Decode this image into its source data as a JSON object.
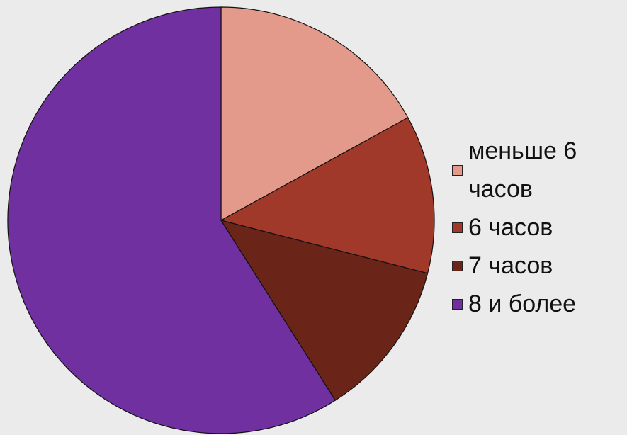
{
  "chart_data": {
    "type": "pie",
    "categories": [
      "меньше 6 часов",
      "6 часов",
      "7 часов",
      "8 и более"
    ],
    "values": [
      17,
      12,
      12,
      59
    ],
    "colors": [
      "#e39a8b",
      "#a1392b",
      "#6b2418",
      "#7030a0"
    ],
    "legend": "right"
  }
}
